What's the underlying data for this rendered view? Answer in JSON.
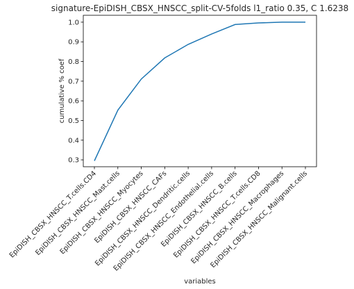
{
  "chart_data": {
    "type": "line",
    "title": "signature-EpiDISH_CBSX_HNSCC_split-CV-5folds l1_ratio 0.35, C 1.6238",
    "xlabel": "variables",
    "ylabel": "cumulative % coef",
    "categories": [
      "EpiDISH_CBSX_HNSCC_T.cells.CD4",
      "EpiDISH_CBSX_HNSCC_Mast.cells",
      "EpiDISH_CBSX_HNSCC_Myocytes",
      "EpiDISH_CBSX_HNSCC_CAFs",
      "EpiDISH_CBSX_HNSCC_Dendritic.cells",
      "EpiDISH_CBSX_HNSCC_Endothelial.cells",
      "EpiDISH_CBSX_HNSCC_B.cells",
      "EpiDISH_CBSX_HNSCC_T.cells.CD8",
      "EpiDISH_CBSX_HNSCC_Macrophages",
      "EpiDISH_CBSX_HNSCC_Malignant.cells"
    ],
    "values": [
      0.295,
      0.553,
      0.711,
      0.818,
      0.887,
      0.94,
      0.988,
      0.996,
      1.0,
      1.0
    ],
    "ylim": [
      0.265,
      1.035
    ],
    "yticks": [
      "0.3",
      "0.4",
      "0.5",
      "0.6",
      "0.7",
      "0.8",
      "0.9",
      "1.0"
    ],
    "grid": false,
    "line_color": "#1f77b4"
  }
}
